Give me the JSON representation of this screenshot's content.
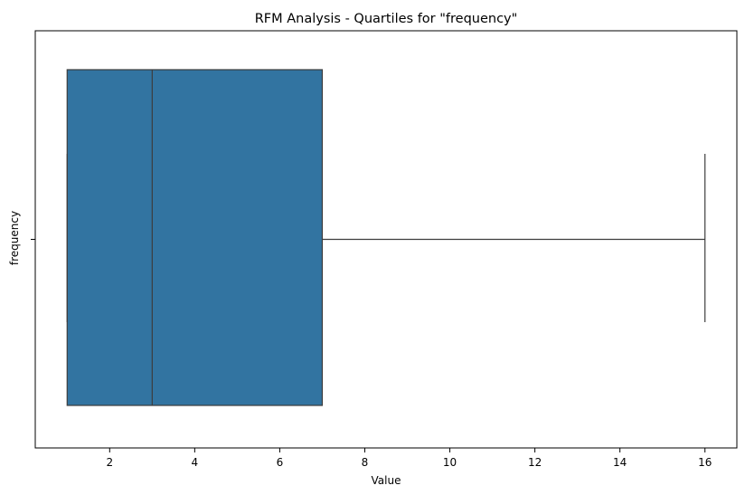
{
  "chart_data": {
    "type": "boxplot",
    "title": "RFM Analysis - Quartiles for \"frequency\"",
    "xlabel": "Value",
    "ylabel": "frequency",
    "categories": [
      "frequency"
    ],
    "orientation": "horizontal",
    "series": [
      {
        "name": "frequency",
        "whisker_low": 1,
        "q1": 1,
        "median": 3,
        "q3": 7,
        "whisker_high": 16,
        "outliers": []
      }
    ],
    "xlim": [
      0.25,
      16.75
    ],
    "xticks": [
      2,
      4,
      6,
      8,
      10,
      12,
      14,
      16
    ],
    "grid": false,
    "legend": "none",
    "colors": {
      "box_fill": "#3274a1",
      "line": "#3d3d3d",
      "axis": "#000000",
      "background": "#ffffff"
    }
  }
}
